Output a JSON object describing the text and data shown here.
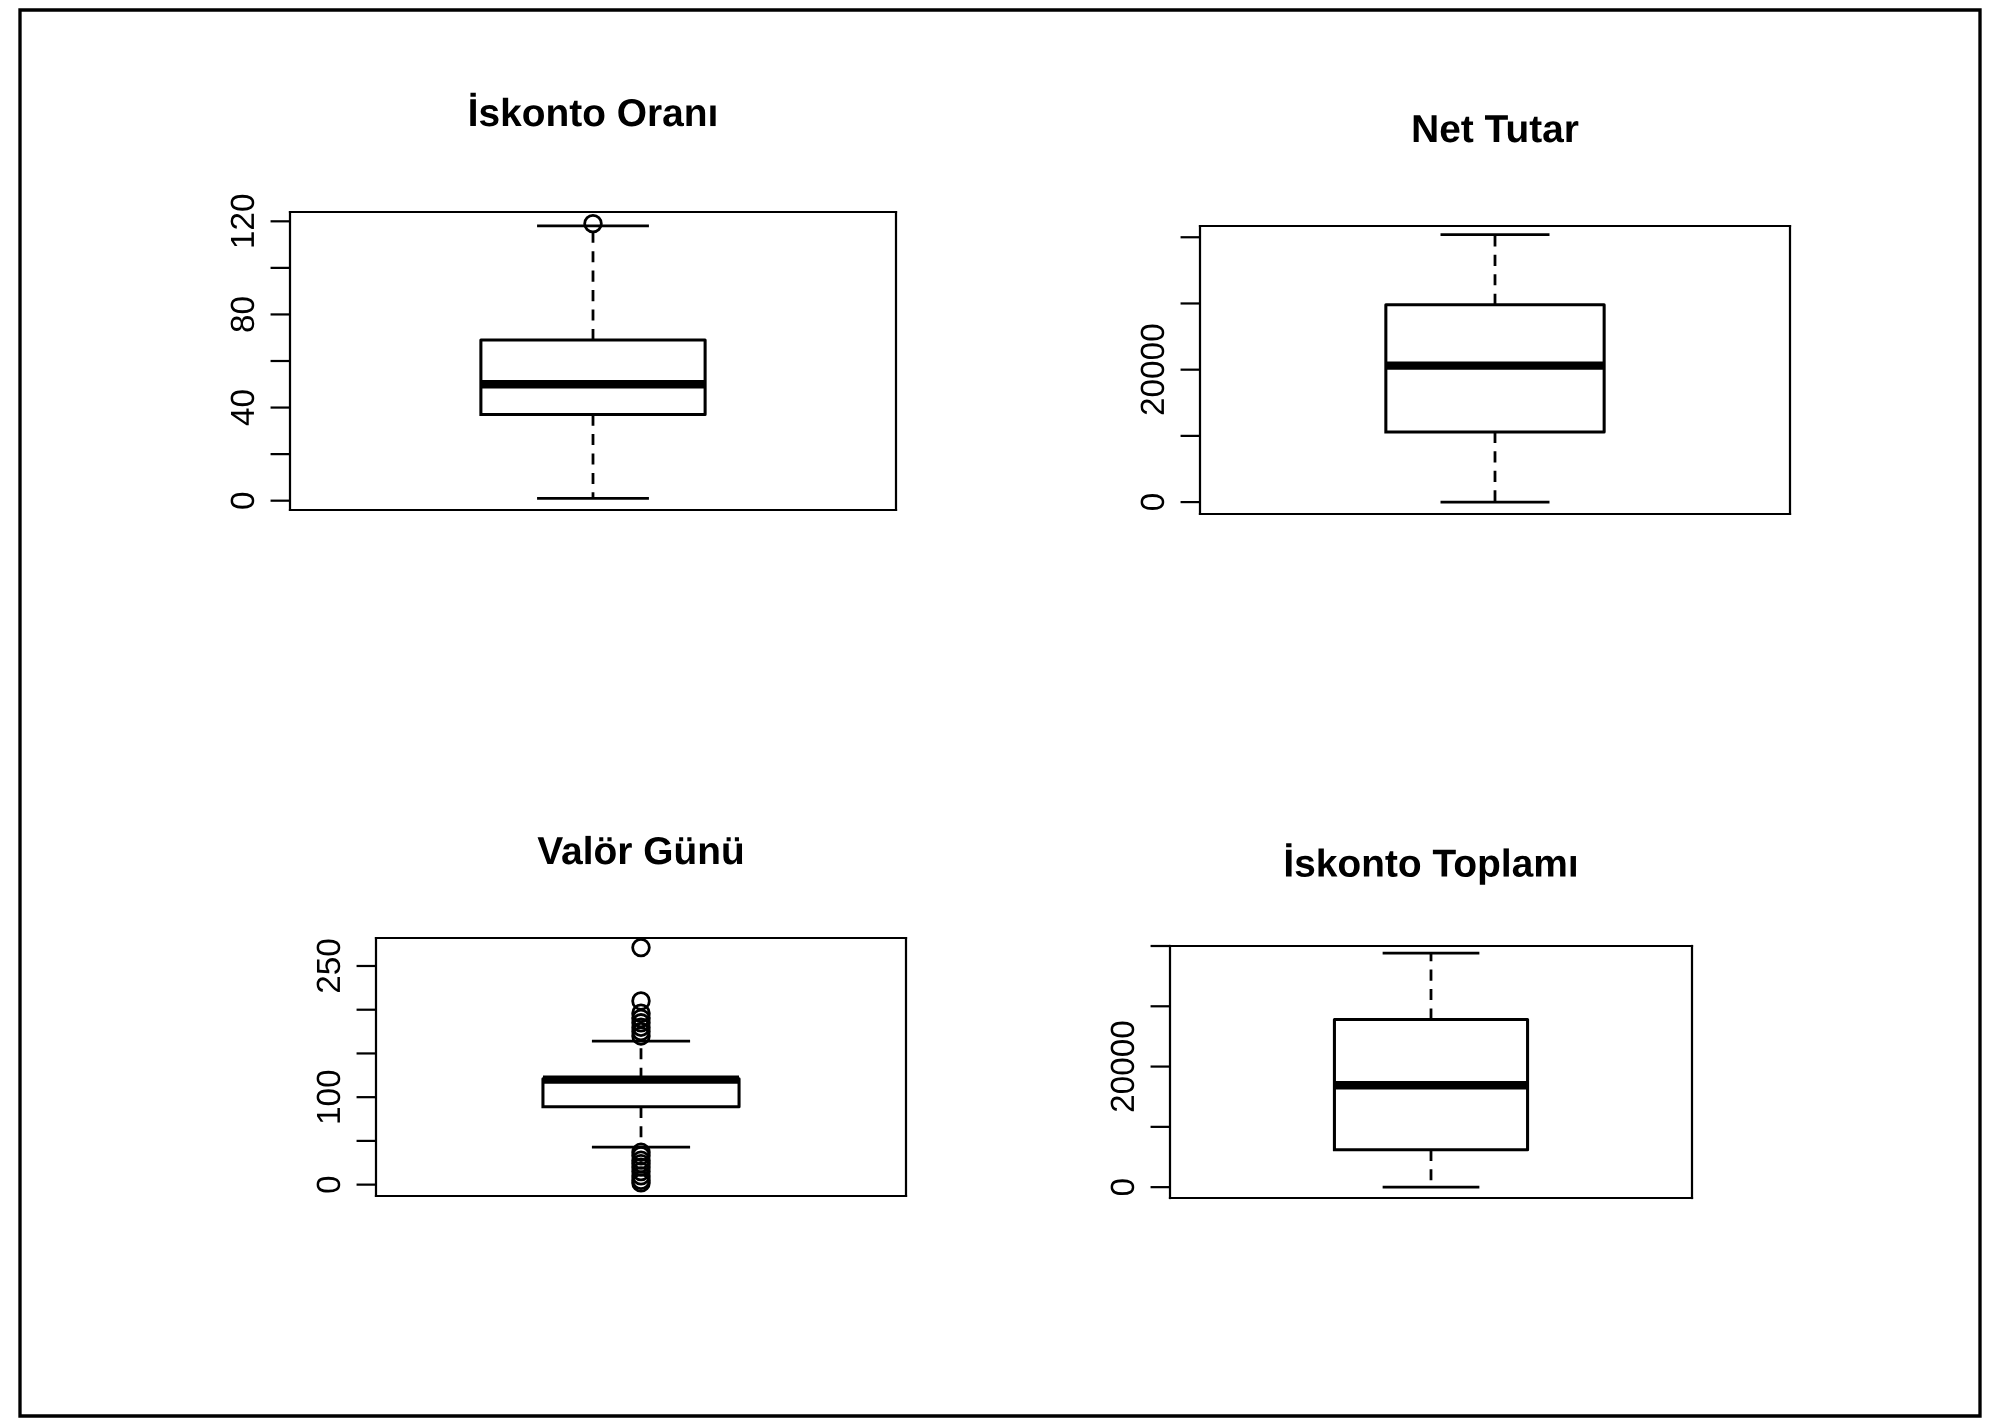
{
  "chart_data": [
    {
      "type": "box",
      "title": "İskonto Oranı",
      "categories": [
        null
      ],
      "tick_labels": "y",
      "ylim": [
        -4,
        124
      ],
      "yticks": [
        0,
        {
          "value": 20,
          "label": null
        },
        40,
        {
          "value": 60,
          "label": null
        },
        80,
        {
          "value": 100,
          "label": null
        },
        120
      ],
      "boxes": [
        {
          "low": 1,
          "q1": 37,
          "median": 50,
          "q3": 69,
          "high": 118,
          "outliers": [
            119
          ]
        }
      ]
    },
    {
      "type": "box",
      "title": "Net Tutar",
      "categories": [
        null
      ],
      "tick_labels": "y",
      "ylim": [
        -1800,
        41700
      ],
      "yticks": [
        0,
        {
          "value": 10000,
          "label": null
        },
        20000,
        {
          "value": 30000,
          "label": null
        },
        {
          "value": 40000,
          "label": null
        }
      ],
      "boxes": [
        {
          "low": 0,
          "q1": 10600,
          "median": 20600,
          "q3": 29800,
          "high": 40400
        }
      ]
    },
    {
      "type": "box",
      "title": "Valör Günü",
      "categories": [
        null
      ],
      "tick_labels": "y",
      "ylim": [
        -13,
        282
      ],
      "yticks": [
        0,
        {
          "value": 50,
          "label": null
        },
        100,
        {
          "value": 150,
          "label": null
        },
        {
          "value": 200,
          "label": null
        },
        250
      ],
      "boxes": [
        {
          "low": 43,
          "q1": 89,
          "median": 120,
          "q3": 121,
          "high": 164,
          "outliers": [
            271,
            210,
            196,
            190,
            185,
            180,
            175,
            170,
            37,
            33,
            28,
            24,
            20,
            15,
            10,
            5,
            2
          ]
        }
      ]
    },
    {
      "type": "box",
      "title": "İskonto Toplamı",
      "categories": [
        null
      ],
      "tick_labels": "y",
      "ylim": [
        -1800,
        40000
      ],
      "yticks": [
        0,
        {
          "value": 10000,
          "label": null
        },
        20000,
        {
          "value": 30000,
          "label": null
        },
        {
          "value": 40000,
          "label": null
        }
      ],
      "boxes": [
        {
          "low": 0,
          "q1": 6200,
          "median": 16900,
          "q3": 27800,
          "high": 38800
        }
      ]
    }
  ]
}
